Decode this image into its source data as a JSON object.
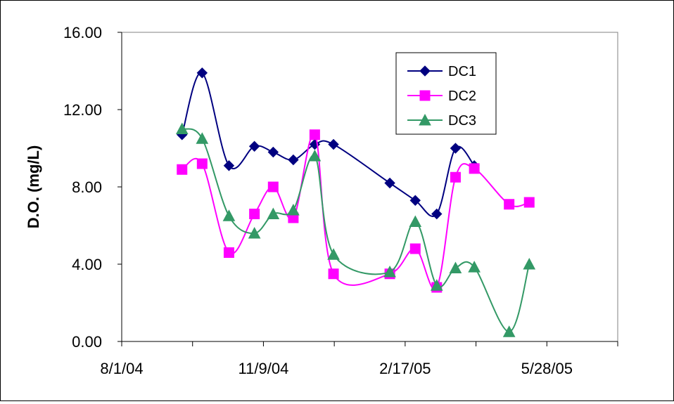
{
  "chart_data": {
    "type": "line",
    "title": "",
    "xlabel": "",
    "ylabel": "D.O. (mg/L)",
    "ylim": [
      0,
      16
    ],
    "yticks": [
      "0.00",
      "4.00",
      "8.00",
      "12.00",
      "16.00"
    ],
    "xlim": [
      "2004-08-01",
      "2005-08-06"
    ],
    "xticks": [
      "8/1/04",
      "11/9/04",
      "2/17/05",
      "5/28/05"
    ],
    "grid": false,
    "legend": "top-center",
    "series": [
      {
        "name": "DC1",
        "color": "#000080",
        "marker": "diamond",
        "points": [
          [
            "2004-09-15",
            10.7
          ],
          [
            "2004-09-30",
            13.9
          ],
          [
            "2004-10-20",
            9.1
          ],
          [
            "2004-11-08",
            10.1
          ],
          [
            "2004-11-22",
            9.8
          ],
          [
            "2004-12-07",
            9.4
          ],
          [
            "2004-12-23",
            10.2
          ],
          [
            "2005-01-06",
            10.2
          ],
          [
            "2005-02-17",
            8.2
          ],
          [
            "2005-03-08",
            7.3
          ],
          [
            "2005-03-24",
            6.6
          ],
          [
            "2005-04-07",
            10.0
          ],
          [
            "2005-04-21",
            9.1
          ]
        ]
      },
      {
        "name": "DC2",
        "color": "#FF00FF",
        "marker": "square",
        "points": [
          [
            "2004-09-15",
            8.9
          ],
          [
            "2004-09-30",
            9.2
          ],
          [
            "2004-10-20",
            4.6
          ],
          [
            "2004-11-08",
            6.6
          ],
          [
            "2004-11-22",
            8.0
          ],
          [
            "2004-12-07",
            6.4
          ],
          [
            "2004-12-23",
            10.7
          ],
          [
            "2005-01-06",
            3.5
          ],
          [
            "2005-02-17",
            3.5
          ],
          [
            "2005-03-08",
            4.8
          ],
          [
            "2005-03-24",
            2.8
          ],
          [
            "2005-04-07",
            8.5
          ],
          [
            "2005-04-21",
            8.95
          ],
          [
            "2005-05-17",
            7.1
          ],
          [
            "2005-06-01",
            7.2
          ]
        ]
      },
      {
        "name": "DC3",
        "color": "#339966",
        "marker": "triangle",
        "points": [
          [
            "2004-09-15",
            11.0
          ],
          [
            "2004-09-30",
            10.5
          ],
          [
            "2004-10-20",
            6.5
          ],
          [
            "2004-11-08",
            5.6
          ],
          [
            "2004-11-22",
            6.6
          ],
          [
            "2004-12-07",
            6.8
          ],
          [
            "2004-12-23",
            9.6
          ],
          [
            "2005-01-06",
            4.5
          ],
          [
            "2005-02-17",
            3.6
          ],
          [
            "2005-03-08",
            6.2
          ],
          [
            "2005-03-24",
            2.9
          ],
          [
            "2005-04-07",
            3.8
          ],
          [
            "2005-04-21",
            3.85
          ],
          [
            "2005-05-17",
            0.5
          ],
          [
            "2005-06-01",
            4.0
          ]
        ]
      }
    ]
  }
}
